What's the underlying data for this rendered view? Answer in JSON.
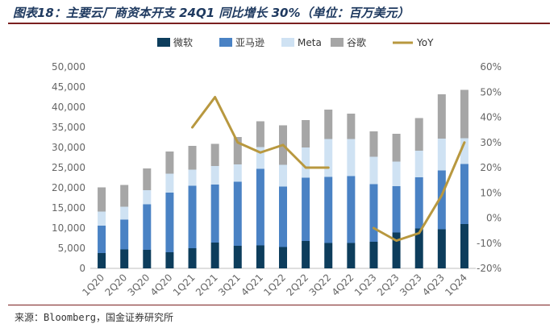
{
  "page": {
    "title": "图表18：主要云厂商资本开支 24Q1 同比增长 30%（单位：百万美元）",
    "source": "来源：Bloomberg，国金证券研究所"
  },
  "chart_data": {
    "type": "bar",
    "stacked": true,
    "categories": [
      "1Q20",
      "2Q20",
      "3Q20",
      "4Q20",
      "1Q21",
      "2Q21",
      "3Q21",
      "4Q21",
      "1Q22",
      "2Q22",
      "3Q22",
      "4Q22",
      "1Q23",
      "2Q23",
      "3Q23",
      "4Q23",
      "1Q24"
    ],
    "series": [
      {
        "name": "微软",
        "color": "#0d3d5c",
        "values": [
          3800,
          4700,
          4600,
          4000,
          5000,
          6400,
          5600,
          5700,
          5300,
          6800,
          6300,
          6300,
          6600,
          8900,
          9900,
          9700,
          11000
        ]
      },
      {
        "name": "亚马逊",
        "color": "#4a82c4",
        "values": [
          6800,
          7400,
          11300,
          14800,
          15500,
          14400,
          15900,
          19000,
          15000,
          15700,
          16400,
          16600,
          14300,
          11500,
          12700,
          14600,
          14900
        ]
      },
      {
        "name": "Meta",
        "color": "#cfe2f3",
        "values": [
          3500,
          3200,
          3500,
          4700,
          4000,
          4600,
          4300,
          5400,
          5400,
          7500,
          9400,
          9200,
          6800,
          6100,
          6600,
          7900,
          6400
        ]
      },
      {
        "name": "谷歌",
        "color": "#a6a6a6",
        "values": [
          6000,
          5400,
          5400,
          5500,
          5900,
          5500,
          6800,
          6400,
          9800,
          6800,
          7300,
          6300,
          6300,
          6900,
          8100,
          11000,
          12000
        ]
      },
      {
        "name": "YoY",
        "type": "line",
        "axis": "right",
        "color": "#b8983f",
        "values": [
          null,
          null,
          null,
          null,
          36,
          48,
          30,
          26,
          29,
          20,
          20,
          null,
          -4,
          -9,
          -6,
          9,
          30
        ]
      }
    ],
    "y_left": {
      "range": [
        0,
        50000
      ],
      "ticks": [
        "0",
        "5,000",
        "10,000",
        "15,000",
        "20,000",
        "25,000",
        "30,000",
        "35,000",
        "40,000",
        "45,000",
        "50,000"
      ]
    },
    "y_right": {
      "range": [
        -20,
        60
      ],
      "ticks": [
        "-20%",
        "-10%",
        "0%",
        "10%",
        "20%",
        "30%",
        "40%",
        "50%",
        "60%"
      ]
    },
    "legend": {
      "position": "top",
      "labels": [
        "微软",
        "亚马逊",
        "Meta",
        "谷歌",
        "YoY"
      ]
    }
  }
}
